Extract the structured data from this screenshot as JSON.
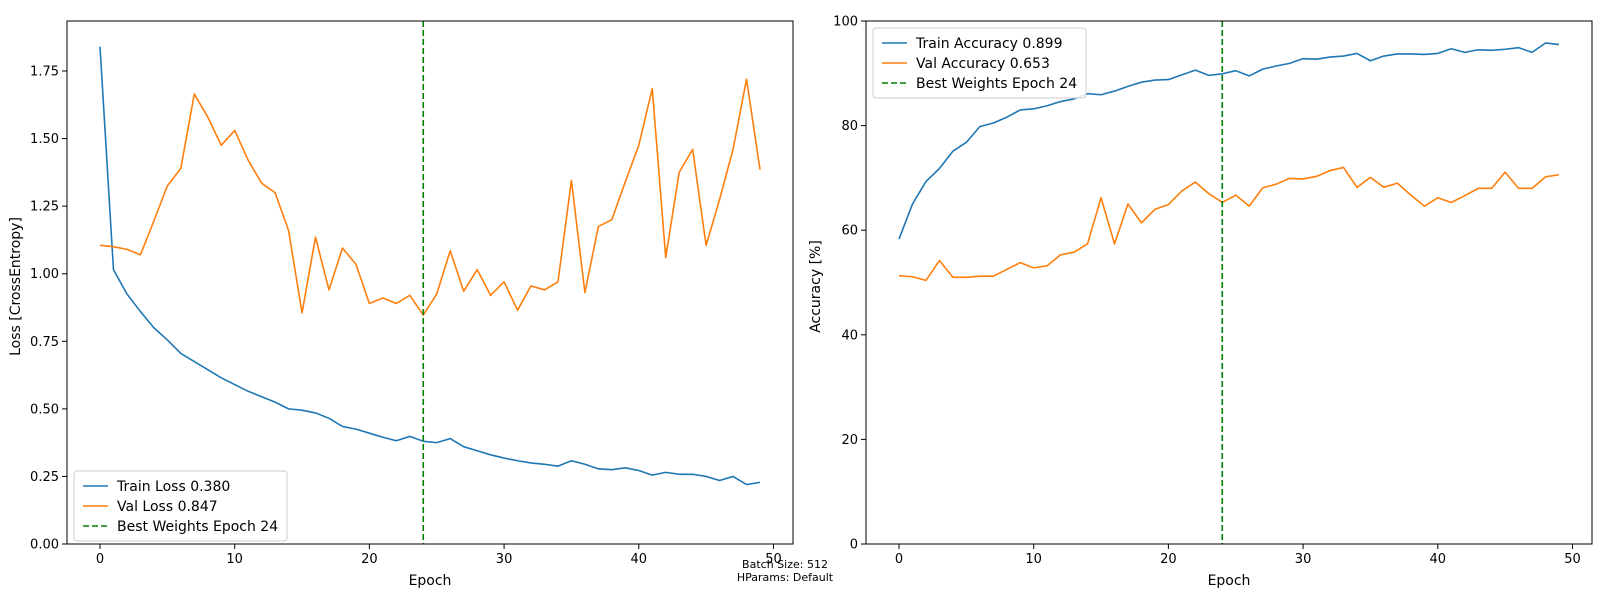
{
  "colors": {
    "train": "#1f77b4",
    "val": "#ff7f0e",
    "best": "#008000"
  },
  "footnote": {
    "line1": "Batch Size: 512",
    "line2": "HParams: Default"
  },
  "chart_data": [
    {
      "type": "line",
      "xlabel": "Epoch",
      "ylabel": "Loss [CrossEntropy]",
      "xlim": [
        -2.45,
        51.45
      ],
      "ylim": [
        0.0,
        1.935
      ],
      "xticks": [
        0,
        10,
        20,
        30,
        40,
        50
      ],
      "xtick_labels": [
        "0",
        "10",
        "20",
        "30",
        "40",
        "50"
      ],
      "yticks": [
        0.0,
        0.25,
        0.5,
        0.75,
        1.0,
        1.25,
        1.5,
        1.75
      ],
      "ytick_labels": [
        "0.00",
        "0.25",
        "0.50",
        "0.75",
        "1.00",
        "1.25",
        "1.50",
        "1.75"
      ],
      "legend_position": "lower-left",
      "best_epoch": 24,
      "x": [
        0,
        1,
        2,
        3,
        4,
        5,
        6,
        7,
        8,
        9,
        10,
        11,
        12,
        13,
        14,
        15,
        16,
        17,
        18,
        19,
        20,
        21,
        22,
        23,
        24,
        25,
        26,
        27,
        28,
        29,
        30,
        31,
        32,
        33,
        34,
        35,
        36,
        37,
        38,
        39,
        40,
        41,
        42,
        43,
        44,
        45,
        46,
        47,
        48,
        49
      ],
      "series": [
        {
          "name": "Train Loss 0.380",
          "color": "#1f77b4",
          "values": [
            1.84,
            1.015,
            0.925,
            0.86,
            0.8,
            0.755,
            0.705,
            0.675,
            0.645,
            0.615,
            0.59,
            0.565,
            0.545,
            0.525,
            0.5,
            0.495,
            0.485,
            0.465,
            0.435,
            0.425,
            0.41,
            0.395,
            0.382,
            0.398,
            0.38,
            0.375,
            0.39,
            0.36,
            0.345,
            0.33,
            0.318,
            0.308,
            0.3,
            0.295,
            0.288,
            0.308,
            0.295,
            0.278,
            0.275,
            0.282,
            0.272,
            0.255,
            0.265,
            0.258,
            0.258,
            0.25,
            0.235,
            0.25,
            0.22,
            0.228
          ]
        },
        {
          "name": "Val Loss 0.847",
          "color": "#ff7f0e",
          "values": [
            1.105,
            1.1,
            1.09,
            1.07,
            1.195,
            1.325,
            1.39,
            1.665,
            1.58,
            1.475,
            1.53,
            1.42,
            1.335,
            1.3,
            1.16,
            0.855,
            1.135,
            0.94,
            1.095,
            1.035,
            0.89,
            0.91,
            0.89,
            0.92,
            0.847,
            0.925,
            1.085,
            0.935,
            1.015,
            0.92,
            0.97,
            0.865,
            0.955,
            0.94,
            0.97,
            1.345,
            0.93,
            1.175,
            1.2,
            1.34,
            1.475,
            1.685,
            1.06,
            1.375,
            1.46,
            1.105,
            1.275,
            1.46,
            1.72,
            1.385
          ]
        }
      ],
      "best_label": "Best Weights Epoch 24"
    },
    {
      "type": "line",
      "xlabel": "Epoch",
      "ylabel": "Accuracy [%]",
      "xlim": [
        -2.45,
        51.45
      ],
      "ylim": [
        0,
        100
      ],
      "xticks": [
        0,
        10,
        20,
        30,
        40,
        50
      ],
      "xtick_labels": [
        "0",
        "10",
        "20",
        "30",
        "40",
        "50"
      ],
      "yticks": [
        0,
        20,
        40,
        60,
        80,
        100
      ],
      "ytick_labels": [
        "0",
        "20",
        "40",
        "60",
        "80",
        "100"
      ],
      "legend_position": "upper-left",
      "best_epoch": 24,
      "x": [
        0,
        1,
        2,
        3,
        4,
        5,
        6,
        7,
        8,
        9,
        10,
        11,
        12,
        13,
        14,
        15,
        16,
        17,
        18,
        19,
        20,
        21,
        22,
        23,
        24,
        25,
        26,
        27,
        28,
        29,
        30,
        31,
        32,
        33,
        34,
        35,
        36,
        37,
        38,
        39,
        40,
        41,
        42,
        43,
        44,
        45,
        46,
        47,
        48,
        49
      ],
      "series": [
        {
          "name": "Train Accuracy 0.899",
          "color": "#1f77b4",
          "values": [
            58.3,
            65.0,
            69.3,
            71.8,
            75.1,
            76.8,
            79.8,
            80.5,
            81.6,
            83.0,
            83.2,
            83.8,
            84.6,
            85.1,
            86.1,
            85.9,
            86.6,
            87.5,
            88.3,
            88.7,
            88.8,
            89.7,
            90.6,
            89.6,
            89.9,
            90.5,
            89.5,
            90.8,
            91.4,
            91.9,
            92.8,
            92.7,
            93.1,
            93.3,
            93.8,
            92.4,
            93.3,
            93.7,
            93.7,
            93.6,
            93.8,
            94.7,
            94.0,
            94.5,
            94.4,
            94.6,
            94.9,
            94.0,
            95.8,
            95.5
          ]
        },
        {
          "name": "Val Accuracy 0.653",
          "color": "#ff7f0e",
          "values": [
            51.3,
            51.1,
            50.4,
            54.2,
            51.0,
            51.0,
            51.2,
            51.2,
            52.5,
            53.8,
            52.8,
            53.2,
            55.3,
            55.8,
            57.4,
            66.2,
            57.4,
            65.0,
            61.4,
            64.0,
            64.9,
            67.5,
            69.2,
            67.0,
            65.3,
            66.7,
            64.6,
            68.1,
            68.8,
            69.9,
            69.8,
            70.3,
            71.4,
            72.0,
            68.2,
            70.1,
            68.2,
            69.0,
            66.7,
            64.6,
            66.2,
            65.3,
            66.6,
            68.0,
            68.0,
            71.1,
            68.0,
            68.0,
            70.2,
            70.6
          ]
        }
      ],
      "best_label": "Best Weights Epoch 24"
    }
  ]
}
